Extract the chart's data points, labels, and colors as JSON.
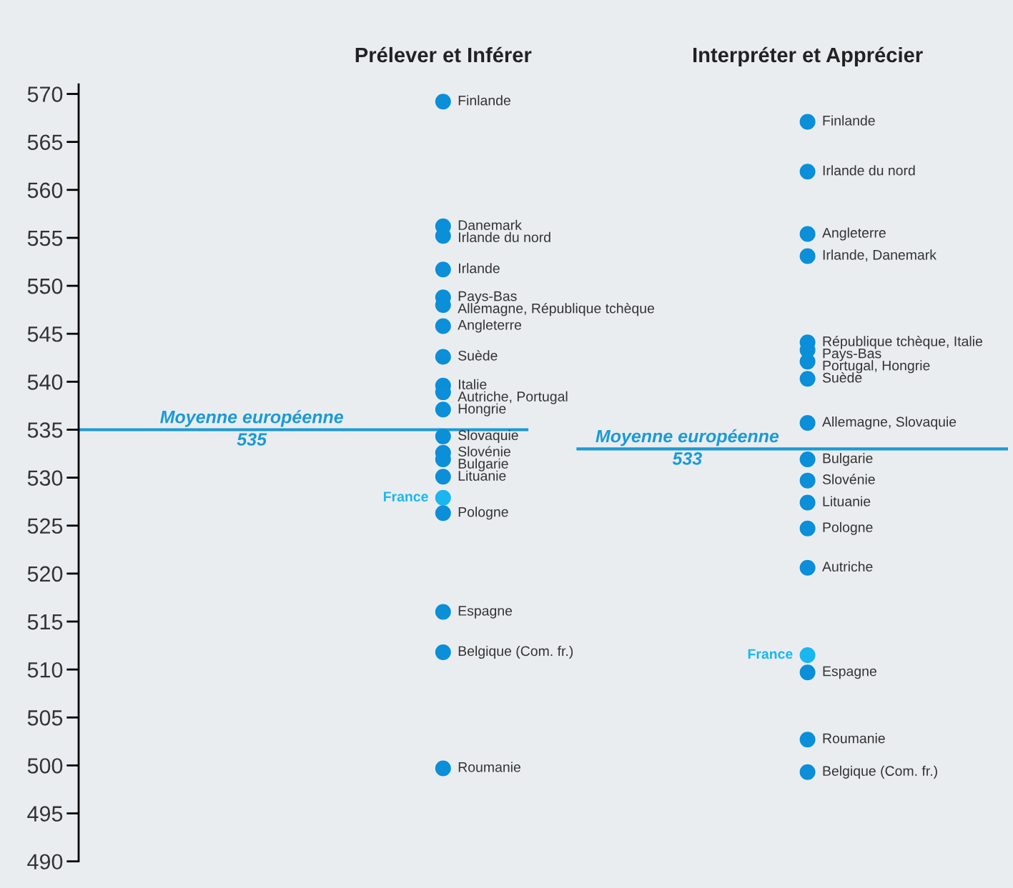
{
  "chart_data": {
    "type": "scatter",
    "categories": [
      "Prélever et Inférer",
      "Interpréter et Apprécier"
    ],
    "ylim": [
      490,
      571
    ],
    "yticks": [
      490,
      495,
      500,
      505,
      510,
      515,
      520,
      525,
      530,
      535,
      540,
      545,
      550,
      555,
      560,
      565,
      570
    ],
    "grid": false,
    "marker": "circle",
    "ref_lines": [
      {
        "axis": "y",
        "value": 535,
        "label": "Moyenne européenne\n535",
        "color": "#1a9ad6"
      },
      {
        "axis": "y",
        "value": 533,
        "label": "Moyenne européenne\n533",
        "color": "#1a9ad6"
      }
    ],
    "series": [
      {
        "name": "Finlande",
        "color": "#0a8fd8",
        "values": [
          569.2,
          null
        ]
      },
      {
        "name": "Danemark",
        "color": "#0a8fd8",
        "values": [
          556.2,
          null
        ]
      },
      {
        "name": "Irlande du nord",
        "color": "#0a8fd8",
        "values": [
          555.2,
          null
        ]
      },
      {
        "name": "Irlande",
        "color": "#0a8fd8",
        "values": [
          551.7,
          null
        ]
      },
      {
        "name": "Pays-Bas",
        "color": "#0a8fd8",
        "values": [
          548.8,
          null
        ]
      },
      {
        "name": "Allemagne, République tchèque",
        "color": "#0a8fd8",
        "values": [
          548.0,
          null
        ]
      },
      {
        "name": "Angleterre",
        "color": "#0a8fd8",
        "values": [
          545.8,
          null
        ]
      },
      {
        "name": "Suède",
        "color": "#0a8fd8",
        "values": [
          542.6,
          null
        ]
      },
      {
        "name": "Italie",
        "color": "#0a8fd8",
        "values": [
          539.6,
          null
        ]
      },
      {
        "name": "Autriche, Portugal",
        "color": "#0a8fd8",
        "values": [
          538.9,
          null
        ]
      },
      {
        "name": "Hongrie",
        "color": "#0a8fd8",
        "values": [
          537.1,
          null
        ]
      },
      {
        "name": "Slovaquie",
        "color": "#0a8fd8",
        "values": [
          534.3,
          null
        ]
      },
      {
        "name": "Slovénie",
        "color": "#0a8fd8",
        "values": [
          532.6,
          null
        ]
      },
      {
        "name": "Bulgarie",
        "color": "#0a8fd8",
        "values": [
          531.9,
          null
        ]
      },
      {
        "name": "Lituanie",
        "color": "#0a8fd8",
        "values": [
          530.1,
          null
        ]
      },
      {
        "name": "France",
        "color": "#19b6f0",
        "values": [
          527.9,
          null
        ]
      },
      {
        "name": "Pologne",
        "color": "#0a8fd8",
        "values": [
          526.3,
          null
        ]
      },
      {
        "name": "Espagne",
        "color": "#0a8fd8",
        "values": [
          516.0,
          null
        ]
      },
      {
        "name": "Belgique (Com. fr.)",
        "color": "#0a8fd8",
        "values": [
          511.8,
          null
        ]
      },
      {
        "name": "Roumanie",
        "color": "#0a8fd8",
        "values": [
          499.7,
          null
        ]
      },
      {
        "name": "Finlande",
        "color": "#0a8fd8",
        "values": [
          null,
          567.1
        ]
      },
      {
        "name": "Irlande du nord",
        "color": "#0a8fd8",
        "values": [
          null,
          561.9
        ]
      },
      {
        "name": "Angleterre",
        "color": "#0a8fd8",
        "values": [
          null,
          555.4
        ]
      },
      {
        "name": "Irlande, Danemark",
        "color": "#0a8fd8",
        "values": [
          null,
          553.1
        ]
      },
      {
        "name": "République tchèque, Italie",
        "color": "#0a8fd8",
        "values": [
          null,
          544.1
        ]
      },
      {
        "name": "Pays-Bas",
        "color": "#0a8fd8",
        "values": [
          null,
          543.3
        ]
      },
      {
        "name": "Portugal, Hongrie",
        "color": "#0a8fd8",
        "values": [
          null,
          542.1
        ]
      },
      {
        "name": "Suède",
        "color": "#0a8fd8",
        "values": [
          null,
          540.3
        ]
      },
      {
        "name": "Allemagne, Slovaquie",
        "color": "#0a8fd8",
        "values": [
          null,
          535.7
        ]
      },
      {
        "name": "Bulgarie",
        "color": "#0a8fd8",
        "values": [
          null,
          531.9
        ]
      },
      {
        "name": "Slovénie",
        "color": "#0a8fd8",
        "values": [
          null,
          529.7
        ]
      },
      {
        "name": "Lituanie",
        "color": "#0a8fd8",
        "values": [
          null,
          527.4
        ]
      },
      {
        "name": "Pologne",
        "color": "#0a8fd8",
        "values": [
          null,
          524.7
        ]
      },
      {
        "name": "Autriche",
        "color": "#0a8fd8",
        "values": [
          null,
          520.6
        ]
      },
      {
        "name": "France",
        "color": "#19b6f0",
        "values": [
          null,
          511.5
        ]
      },
      {
        "name": "Espagne",
        "color": "#0a8fd8",
        "values": [
          null,
          509.7
        ]
      },
      {
        "name": "Roumanie",
        "color": "#0a8fd8",
        "values": [
          null,
          502.7
        ]
      },
      {
        "name": "Belgique (Com. fr.)",
        "color": "#0a8fd8",
        "values": [
          null,
          499.3
        ]
      }
    ]
  }
}
